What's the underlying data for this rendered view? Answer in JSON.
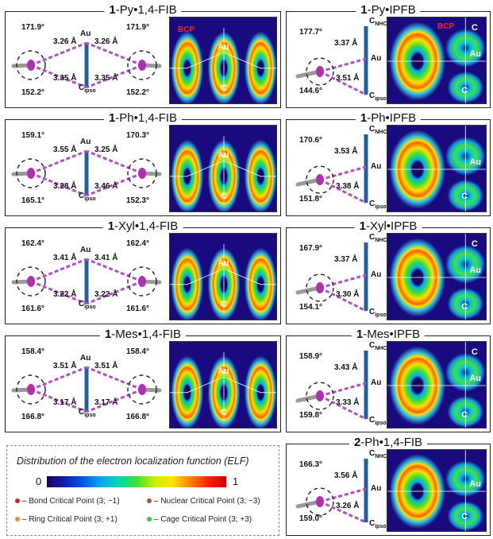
{
  "panels": [
    {
      "id": "p1",
      "prefix": "1",
      "name": "-Py•1,4-FIB",
      "labels": {
        "ang_tl": "171.9°",
        "ang_tr": "171.9°",
        "ang_bl": "152.2°",
        "ang_br": "152.2°",
        "d_tl": "3.26 Å",
        "d_tr": "3.26 Å",
        "d_bl": "3.35 Å",
        "d_br": "3.35 Å",
        "au": "Au",
        "c": "C",
        "c_sub": "ipso"
      },
      "elf_labels": {
        "bcp": "BCP",
        "au": "Au",
        "c": "C"
      }
    },
    {
      "id": "p2",
      "prefix": "1",
      "name": "-Py•IPFB",
      "labels": {
        "ang_t": "177.7°",
        "ang_b": "144.6°",
        "d_t": "3.37 Å",
        "d_b": "3.51 Å",
        "au": "Au",
        "cnhc": "C",
        "cnhc_sub": "NHC",
        "cipso": "C",
        "cipso_sub": "ipso"
      },
      "elf_labels": {
        "bcp": "BCP",
        "au": "Au",
        "c1": "C",
        "c2": "C"
      }
    },
    {
      "id": "p3",
      "prefix": "1",
      "name": "-Ph•1,4-FIB",
      "labels": {
        "ang_tl": "159.1°",
        "ang_tr": "170.3°",
        "ang_bl": "165.1°",
        "ang_br": "152.3°",
        "d_tl": "3.55 Å",
        "d_tr": "3.25 Å",
        "d_bl": "3.28 Å",
        "d_br": "3.46 Å",
        "au": "Au",
        "c": "C",
        "c_sub": "ipso"
      },
      "elf_labels": {
        "au": "Au",
        "c": "C"
      }
    },
    {
      "id": "p4",
      "prefix": "1",
      "name": "-Ph•IPFB",
      "labels": {
        "ang_t": "170.6°",
        "ang_b": "151.8°",
        "d_t": "3.53 Å",
        "d_b": "3.38 Å",
        "au": "Au",
        "cnhc": "C",
        "cnhc_sub": "NHC",
        "cipso": "C",
        "cipso_sub": "ipso"
      },
      "elf_labels": {
        "au": "Au",
        "c": "C"
      }
    },
    {
      "id": "p5",
      "prefix": "1",
      "name": "-Xyl•1,4-FIB",
      "labels": {
        "ang_tl": "162.4°",
        "ang_tr": "162.4°",
        "ang_bl": "161.6°",
        "ang_br": "161.6°",
        "d_tl": "3.41 Å",
        "d_tr": "3.41 Å",
        "d_bl": "3.22 Å",
        "d_br": "3.22 Å",
        "au": "Au",
        "c": "C",
        "c_sub": "ipso"
      },
      "elf_labels": {
        "au": "Au",
        "c": "C"
      }
    },
    {
      "id": "p6",
      "prefix": "1",
      "name": "-Xyl•IPFB",
      "labels": {
        "ang_t": "167.9°",
        "ang_b": "154.1°",
        "d_t": "3.37 Å",
        "d_b": "3.30 Å",
        "au": "Au",
        "cnhc": "C",
        "cnhc_sub": "NHC",
        "cipso": "C",
        "cipso_sub": "ipso"
      },
      "elf_labels": {
        "au": "Au",
        "c1": "C",
        "c2": "C"
      }
    },
    {
      "id": "p7",
      "prefix": "1",
      "name": "-Mes•1,4-FIB",
      "labels": {
        "ang_tl": "158.4°",
        "ang_tr": "158.4°",
        "ang_bl": "166.8°",
        "ang_br": "166.8°",
        "d_tl": "3.51 Å",
        "d_tr": "3.51 Å",
        "d_bl": "3.17 Å",
        "d_br": "3.17 Å",
        "au": "Au",
        "c": "C",
        "c_sub": "ipso"
      },
      "elf_labels": {
        "au": "Au",
        "c": "C"
      }
    },
    {
      "id": "p8",
      "prefix": "1",
      "name": "-Mes•IPFB",
      "labels": {
        "ang_t": "158.9°",
        "ang_b": "159.8°",
        "d_t": "3.43 Å",
        "d_b": "3.33 Å",
        "au": "Au",
        "cnhc": "C",
        "cnhc_sub": "NHC",
        "cipso": "C",
        "cipso_sub": "ipso"
      },
      "elf_labels": {
        "au": "Au",
        "c1": "C",
        "c2": "C"
      }
    },
    {
      "id": "p9",
      "prefix": "2",
      "name": "-Ph•1,4-FIB",
      "labels": {
        "ang_t": "166.3°",
        "ang_b": "159.0°",
        "d_t": "3.56 Å",
        "d_b": "3.26 Å",
        "au": "Au",
        "cnhc": "C",
        "cnhc_sub": "NHC",
        "cipso": "C",
        "cipso_sub": "ipso"
      },
      "elf_labels": {
        "au": "Au",
        "c": "C"
      }
    }
  ],
  "legend": {
    "title": "Distribution of the electron localization function (ELF)",
    "scale_min": "0",
    "scale_max": "1",
    "items": [
      {
        "label": "– Bond Critical Point (3; −1)",
        "color": "#e02020"
      },
      {
        "label": "– Nuclear Critical Point (3; −3)",
        "color": "#a0602a"
      },
      {
        "label": "– Ring Critical Point (3; +1)",
        "color": "#f09020"
      },
      {
        "label": "– Cage Critical Point (3; +3)",
        "color": "#30d030"
      }
    ]
  },
  "colors": {
    "iodine": "#b030b0",
    "halogen_bond": "#b050c0",
    "au": "#2060a0",
    "elf_bg": "#1a0a80"
  }
}
